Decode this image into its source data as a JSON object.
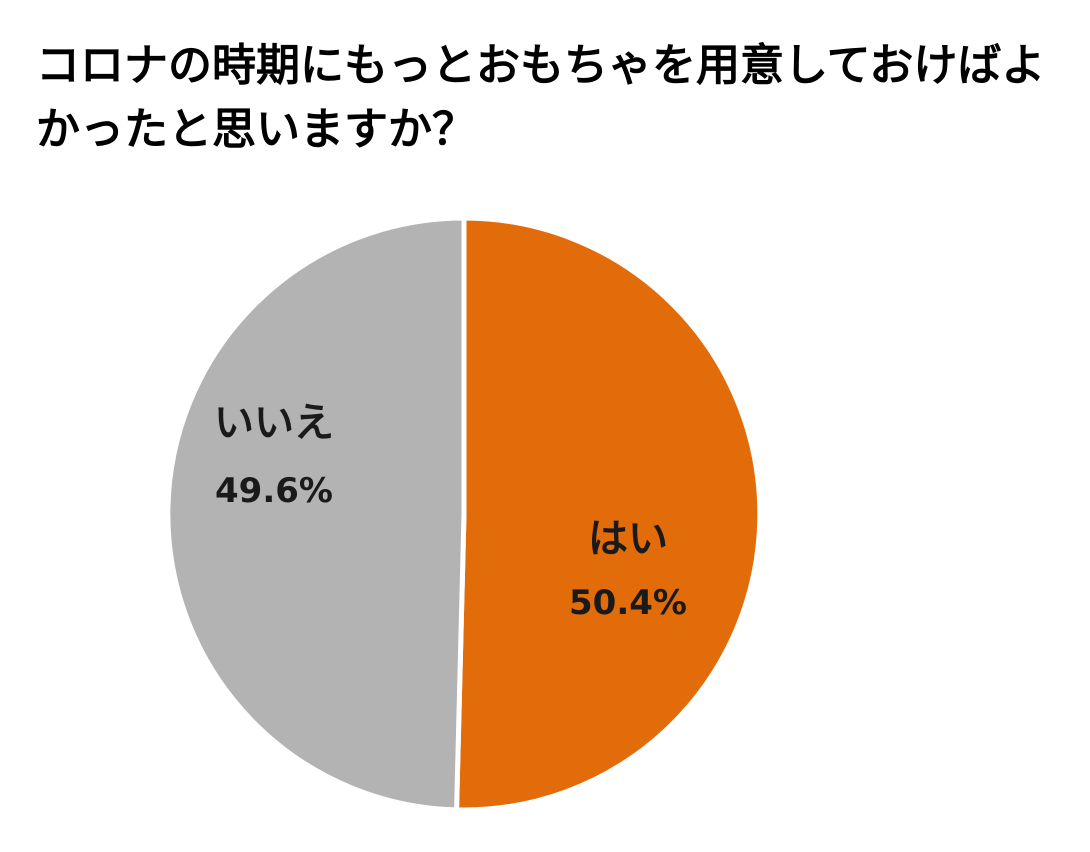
{
  "chart_data": {
    "type": "pie",
    "title": "コロナの時期にもっとおもちゃを用意しておけばよかったと思いますか？",
    "slices": [
      {
        "label": "はい",
        "value": 50.4,
        "value_label": "50.4%",
        "color": "#E36C0A"
      },
      {
        "label": "いいえ",
        "value": 49.6,
        "value_label": "49.6%",
        "color": "#B3B3B3"
      }
    ],
    "start": "12 o'clock",
    "direction": "clockwise",
    "legend": "none",
    "separator_color": "#FFFFFF"
  }
}
